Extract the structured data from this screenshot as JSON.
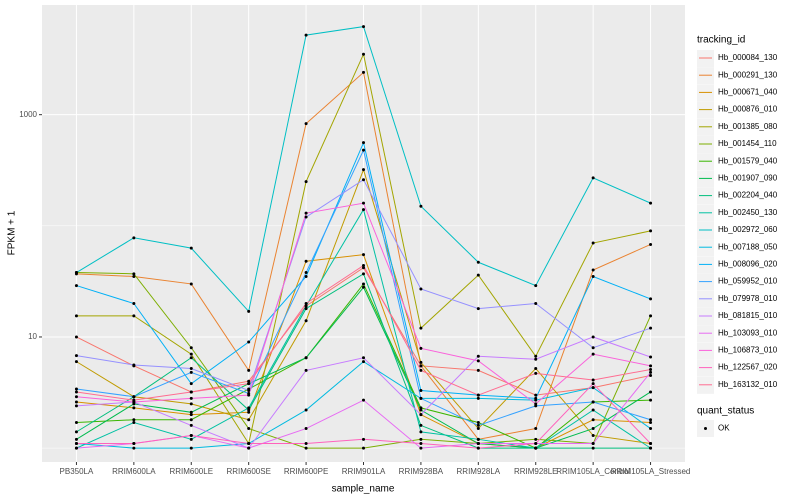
{
  "chart_data": {
    "type": "line",
    "x_label": "sample_name",
    "y_label": "FPKM + 1",
    "y_scale": "log10",
    "grid": true,
    "ylim": [
      0.75,
      9700
    ],
    "yticks": [
      10,
      1000
    ],
    "minor_yticks": [
      1,
      100
    ],
    "legend_title": "tracking_id",
    "point_legend_title": "quant_status",
    "point_legend_label": "OK",
    "point_color": "#000000",
    "categories": [
      "PB350LA",
      "RRIM600LA",
      "RRIM600LE",
      "RRIM600SE",
      "RRIM600PE",
      "RRIM901LA",
      "RRIM928BA",
      "RRIM928LA",
      "RRIM928LE",
      "RRIM105LA_Control",
      "RRIM105LA_Stressed"
    ],
    "series": [
      {
        "name": "Hb_000084_130",
        "color": "#F8766D",
        "values": [
          10,
          5.5,
          3.2,
          4,
          19,
          42,
          5.5,
          5,
          3,
          3.5,
          4.5
        ]
      },
      {
        "name": "Hb_000291_130",
        "color": "#EA8331",
        "values": [
          37,
          35,
          30,
          5,
          830,
          2400,
          5.5,
          1.2,
          1.5,
          40,
          68
        ]
      },
      {
        "name": "Hb_000671_040",
        "color": "#D89000",
        "values": [
          2.6,
          2.3,
          2,
          2.1,
          48,
          55,
          2,
          1.1,
          1,
          1.8,
          1.7
        ]
      },
      {
        "name": "Hb_000876_010",
        "color": "#C09B00",
        "values": [
          6,
          2.9,
          2.5,
          1.8,
          14,
          320,
          5.9,
          1.5,
          5.2,
          1.3,
          1.1
        ]
      },
      {
        "name": "Hb_001385_080",
        "color": "#A3A500",
        "values": [
          15.5,
          15.5,
          7,
          1.1,
          250,
          3500,
          12,
          36,
          6.7,
          70,
          90
        ]
      },
      {
        "name": "Hb_001454_110",
        "color": "#7CAE00",
        "values": [
          38,
          37,
          8,
          1.5,
          1,
          1,
          1.2,
          1.1,
          1.2,
          1.1,
          15.5
        ]
      },
      {
        "name": "Hb_001579_040",
        "color": "#39B600",
        "values": [
          1.7,
          1.8,
          1.8,
          3.4,
          6.5,
          30,
          2.3,
          1.7,
          1,
          2.6,
          2.7
        ]
      },
      {
        "name": "Hb_001907_090",
        "color": "#00BB4E",
        "values": [
          1.2,
          2.5,
          2.1,
          3.8,
          6.5,
          28,
          2.2,
          1.1,
          1,
          1.5,
          3.2
        ]
      },
      {
        "name": "Hb_002204_040",
        "color": "#00BF7D",
        "values": [
          1.4,
          2.9,
          6.5,
          2.2,
          18,
          37,
          1.6,
          1,
          1,
          1,
          1
        ]
      },
      {
        "name": "Hb_002450_130",
        "color": "#00C1A3",
        "values": [
          1,
          1.7,
          1.2,
          2.3,
          19,
          140,
          1.4,
          1.2,
          1,
          2.2,
          1
        ]
      },
      {
        "name": "Hb_002972_060",
        "color": "#00BFC4",
        "values": [
          38,
          78,
          63,
          17,
          5200,
          6200,
          150,
          47,
          29,
          270,
          160
        ]
      },
      {
        "name": "Hb_007188_050",
        "color": "#00BAE0",
        "values": [
          1.1,
          1,
          1,
          1.1,
          2.2,
          6,
          2.8,
          2.8,
          2.7,
          3.5,
          1.5
        ]
      },
      {
        "name": "Hb_008096_020",
        "color": "#00B0F6",
        "values": [
          29,
          20,
          3.8,
          9,
          35,
          560,
          3.3,
          3,
          2.8,
          35,
          22
        ]
      },
      {
        "name": "Hb_059952_010",
        "color": "#35A2FF",
        "values": [
          3.4,
          2.9,
          4.8,
          3.1,
          38,
          480,
          2.8,
          1.6,
          2.4,
          2.6,
          1.8
        ]
      },
      {
        "name": "Hb_079978_010",
        "color": "#9590FF",
        "values": [
          6.8,
          5.6,
          5.2,
          3.3,
          120,
          260,
          27,
          18,
          20,
          8,
          12
        ]
      },
      {
        "name": "Hb_081815_010",
        "color": "#C77CFF",
        "values": [
          2.4,
          2.6,
          1.6,
          1,
          5,
          6.5,
          2,
          6.7,
          6.3,
          10,
          6.6
        ]
      },
      {
        "name": "Hb_103093_010",
        "color": "#E76BF3",
        "values": [
          1,
          1.1,
          1.3,
          1,
          1.5,
          2.7,
          1,
          1.1,
          1.1,
          1.1,
          4.8
        ]
      },
      {
        "name": "Hb_106873_010",
        "color": "#FA62DB",
        "values": [
          2.9,
          2.6,
          2.8,
          3,
          130,
          160,
          7.9,
          6.1,
          2.5,
          7,
          5.5
        ]
      },
      {
        "name": "Hb_122567_020",
        "color": "#FF62BC",
        "values": [
          1.1,
          1.1,
          1.3,
          1.1,
          1.1,
          1.2,
          1.1,
          1,
          1.1,
          3.8,
          1.1
        ]
      },
      {
        "name": "Hb_163132_010",
        "color": "#FF6C91",
        "values": [
          3.2,
          2.7,
          3.2,
          3.8,
          20,
          44,
          5,
          3,
          4.7,
          4.1,
          5.1
        ]
      }
    ]
  }
}
